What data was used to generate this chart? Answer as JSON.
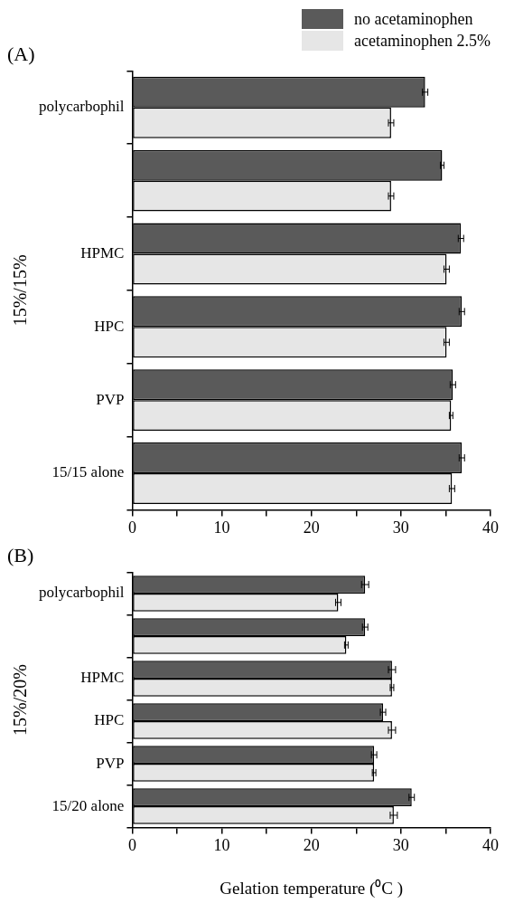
{
  "chart_data": [
    {
      "type": "bar",
      "orientation": "horizontal",
      "title": "(A)",
      "ylabel": "15%/15%",
      "categories": [
        "polycarbophil",
        null,
        "HPMC",
        "HPC",
        "PVP",
        "15/15 alone"
      ],
      "series": [
        {
          "name": "no acetaminophen",
          "color": "#5a5a5a",
          "values": [
            32.7,
            34.6,
            36.7,
            36.8,
            35.8,
            36.8
          ],
          "errors": [
            0.3,
            0.2,
            0.3,
            0.3,
            0.3,
            0.3
          ]
        },
        {
          "name": "acetaminophen 2.5%",
          "color": "#e6e6e6",
          "values": [
            28.9,
            28.9,
            35.1,
            35.1,
            35.6,
            35.7
          ],
          "errors": [
            0.3,
            0.3,
            0.3,
            0.3,
            0.2,
            0.3
          ]
        }
      ],
      "xlim": [
        0,
        40
      ],
      "xticks": [
        0,
        {
          "value": 5,
          "label": null
        },
        10,
        {
          "value": 15,
          "label": null
        },
        20,
        {
          "value": 25,
          "label": null
        },
        30,
        {
          "value": 35,
          "label": null
        },
        40
      ],
      "grid": false,
      "legend": "top right"
    },
    {
      "type": "bar",
      "orientation": "horizontal",
      "title": "(B)",
      "ylabel": "15%/20%",
      "xlabel": "Gelation temperature (⁰C )",
      "categories": [
        "polycarbophil",
        null,
        "HPMC",
        "HPC",
        "PVP",
        "15/20 alone"
      ],
      "series": [
        {
          "color": "#5a5a5a",
          "values": [
            26.0,
            26.0,
            29.0,
            28.0,
            27.0,
            31.2
          ],
          "errors": [
            0.4,
            0.3,
            0.4,
            0.3,
            0.3,
            0.3
          ]
        },
        {
          "color": "#e6e6e6",
          "values": [
            23.0,
            23.9,
            29.0,
            29.0,
            27.0,
            29.2
          ],
          "errors": [
            0.3,
            0.2,
            0.2,
            0.4,
            0.2,
            0.4
          ]
        }
      ],
      "xlim": [
        0,
        40
      ],
      "xticks": [
        0,
        {
          "value": 5,
          "label": null
        },
        10,
        {
          "value": 15,
          "label": null
        },
        20,
        {
          "value": 25,
          "label": null
        },
        30,
        {
          "value": 35,
          "label": null
        },
        40
      ],
      "grid": false,
      "legend": false
    }
  ]
}
